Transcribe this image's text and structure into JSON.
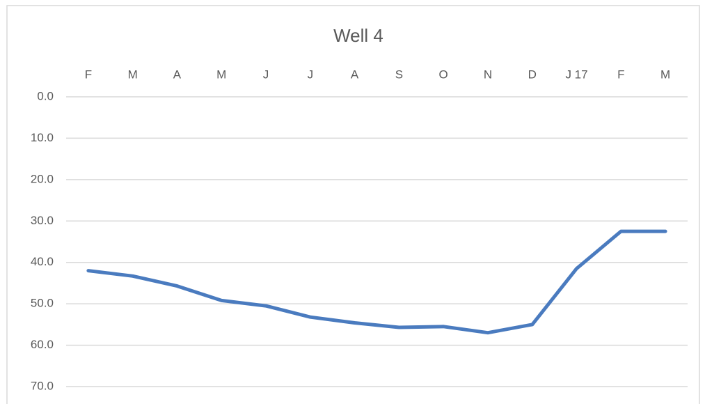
{
  "chart_data": {
    "type": "line",
    "title": "Well 4",
    "categories": [
      "F",
      "M",
      "A",
      "M",
      "J",
      "J",
      "A",
      "S",
      "O",
      "N",
      "D",
      "J 17",
      "F",
      "M"
    ],
    "values": [
      42,
      43.3,
      45.7,
      49.2,
      50.5,
      53.2,
      54.6,
      55.7,
      55.5,
      57,
      55,
      41.5,
      32.5,
      32.5
    ],
    "color": "#4a7bbf",
    "ylim": [
      0,
      70
    ],
    "y_inverted": true,
    "yticks": [
      {
        "value": 0,
        "label": "0.0"
      },
      {
        "value": 10,
        "label": "10.0"
      },
      {
        "value": 20,
        "label": "20.0"
      },
      {
        "value": 30,
        "label": "30.0"
      },
      {
        "value": 40,
        "label": "40.0"
      },
      {
        "value": 50,
        "label": "50.0"
      },
      {
        "value": 60,
        "label": "60.0"
      },
      {
        "value": 70,
        "label": "70.0"
      }
    ],
    "grid": true
  }
}
